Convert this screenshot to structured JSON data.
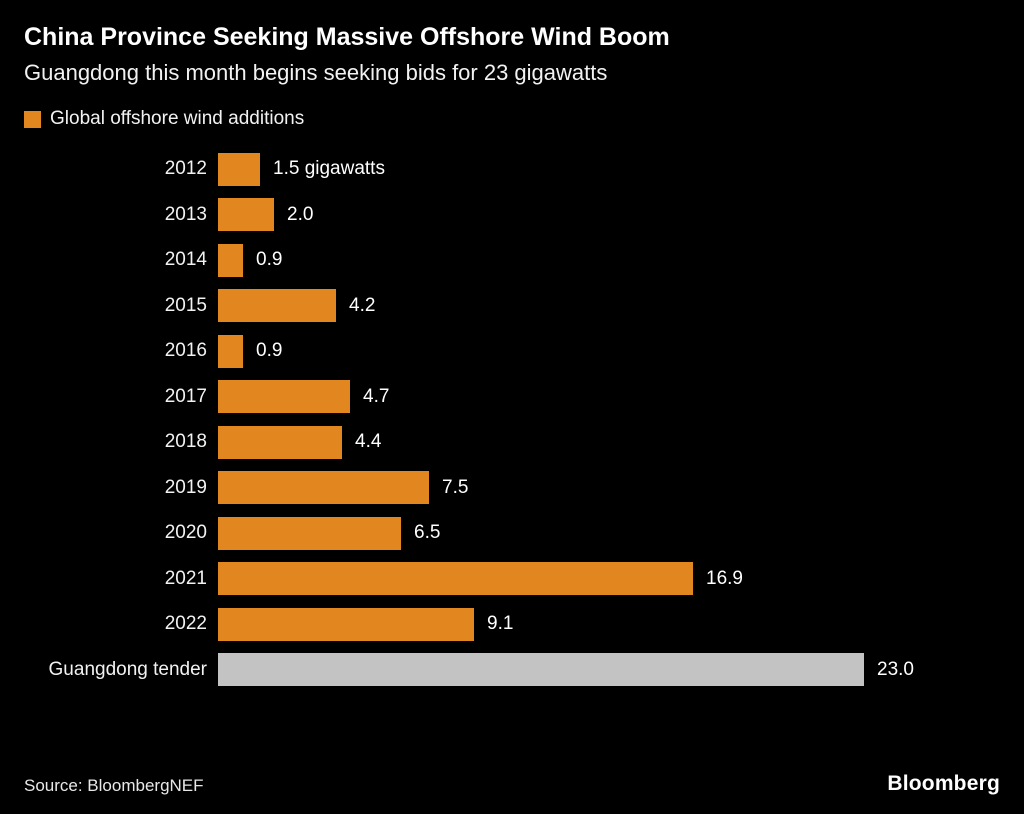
{
  "header": {
    "title": "China Province Seeking Massive Offshore Wind Boom",
    "subtitle": "Guangdong this month begins seeking bids for 23 gigawatts"
  },
  "legend": {
    "label": "Global offshore wind additions",
    "color": "#E2861F"
  },
  "chart_data": {
    "type": "bar",
    "orientation": "horizontal",
    "title": "China Province Seeking Massive Offshore Wind Boom",
    "subtitle": "Guangdong this month begins seeking bids for 23 gigawatts",
    "unit": "gigawatts",
    "xlim": [
      0,
      23
    ],
    "categories": [
      "2012",
      "2013",
      "2014",
      "2015",
      "2016",
      "2017",
      "2018",
      "2019",
      "2020",
      "2021",
      "2022",
      "Guangdong tender"
    ],
    "values": [
      1.5,
      2.0,
      0.9,
      4.2,
      0.9,
      4.7,
      4.4,
      7.5,
      6.5,
      16.9,
      9.1,
      23.0
    ],
    "value_labels": [
      "1.5 gigawatts",
      "2.0",
      "0.9",
      "4.2",
      "0.9",
      "4.7",
      "4.4",
      "7.5",
      "6.5",
      "16.9",
      "9.1",
      "23.0"
    ],
    "bar_colors": [
      "#E2861F",
      "#E2861F",
      "#E2861F",
      "#E2861F",
      "#E2861F",
      "#E2861F",
      "#E2861F",
      "#E2861F",
      "#E2861F",
      "#E2861F",
      "#E2861F",
      "#C3C3C3"
    ],
    "legend": [
      {
        "label": "Global offshore wind additions",
        "color": "#E2861F"
      }
    ],
    "grid": false,
    "legend_position": "top-left"
  },
  "footer": {
    "source": "Source: BloombergNEF",
    "logo": "Bloomberg"
  }
}
